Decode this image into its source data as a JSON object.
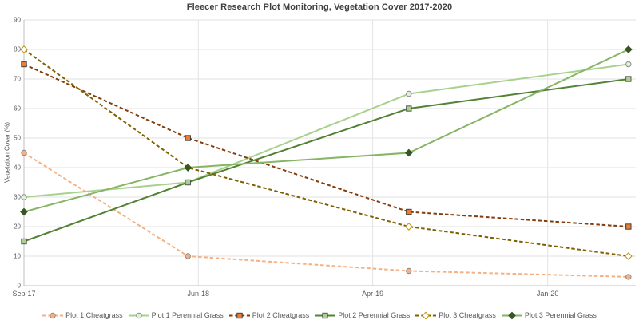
{
  "chart_data": {
    "type": "line",
    "title": "Fleecer Research Plot Monitoring, Vegetation Cover 2017-2020",
    "xlabel": "",
    "ylabel": "Vegetation Cover (%)",
    "ylim": [
      0,
      90
    ],
    "y_ticks": [
      0,
      10,
      20,
      30,
      40,
      50,
      60,
      70,
      80,
      90
    ],
    "x_tick_labels": [
      "Sep-17",
      "Jun-18",
      "Apr-19",
      "Jan-20"
    ],
    "x_tick_positions": [
      0,
      0.285,
      0.57,
      0.856
    ],
    "x_data_positions": [
      0,
      0.268,
      0.629,
      0.988
    ],
    "grid": true,
    "legend_position": "bottom",
    "axis_color": "#BFBFBF",
    "grid_color": "#E2E2E2",
    "tick_label_color": "#595959",
    "series": [
      {
        "name": "Plot 1 Cheatgrass",
        "values": [
          45,
          10,
          5,
          3
        ],
        "color": "#F4B183",
        "dash": true,
        "marker": "circle",
        "marker_fill": "#F4B183",
        "marker_edge": "#8C8C8C"
      },
      {
        "name": "Plot 1 Perennial Grass",
        "values": [
          30,
          35,
          65,
          75
        ],
        "color": "#A9D18E",
        "dash": false,
        "marker": "circle",
        "marker_fill": "#E2EFDA",
        "marker_edge": "#8C8C8C"
      },
      {
        "name": "Plot 2 Cheatgrass",
        "values": [
          75,
          50,
          25,
          20
        ],
        "color": "#843C0C",
        "dash": true,
        "marker": "square",
        "marker_fill": "#ED7D31",
        "marker_edge": "#404040"
      },
      {
        "name": "Plot 2 Perennial Grass",
        "values": [
          15,
          35,
          60,
          70
        ],
        "color": "#538135",
        "dash": false,
        "marker": "square",
        "marker_fill": "#A9D18E",
        "marker_edge": "#595959"
      },
      {
        "name": "Plot 3 Cheatgrass",
        "values": [
          80,
          40,
          20,
          10
        ],
        "color": "#7F6000",
        "dash": true,
        "marker": "diamond",
        "marker_fill": "#FFFDF5",
        "marker_edge": "#BF8F00"
      },
      {
        "name": "Plot 3 Perennial Grass",
        "values": [
          25,
          40,
          45,
          80
        ],
        "color": "#86B566",
        "dash": false,
        "marker": "diamond",
        "marker_fill": "#375623",
        "marker_edge": "#375623"
      }
    ]
  }
}
